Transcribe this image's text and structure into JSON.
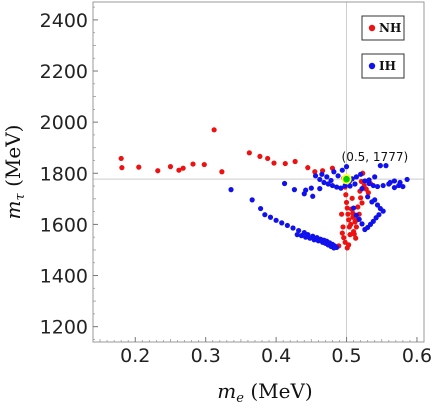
{
  "chart_data": {
    "type": "scatter",
    "xlabel": {
      "symbol": "m",
      "sub": "e",
      "unit": " (MeV)"
    },
    "ylabel": {
      "symbol": "m",
      "sub": "τ",
      "unit": " (MeV)"
    },
    "xlim": [
      0.14,
      0.61
    ],
    "ylim": [
      1140,
      2470
    ],
    "xticks": [
      "0.2",
      "0.3",
      "0.4",
      "0.5",
      "0.6"
    ],
    "xtick_values": [
      0.2,
      0.3,
      0.4,
      0.5,
      0.6
    ],
    "yticks": [
      "1200",
      "1400",
      "1600",
      "1800",
      "2000",
      "2200",
      "2400"
    ],
    "ytick_values": [
      1200,
      1400,
      1600,
      1800,
      2000,
      2200,
      2400
    ],
    "grid": false,
    "reference_lines": {
      "x": 0.5,
      "y": 1777,
      "color": "#cccccc"
    },
    "annotation": {
      "text": "(0.5, 1777)",
      "x": 0.5,
      "y": 1777,
      "marker_fill": "#00cc00",
      "marker_stroke": "#ffff33"
    },
    "legend": {
      "placement": "top-right",
      "entries": [
        {
          "label": "NH",
          "color": "#ee1111"
        },
        {
          "label": "IH",
          "color": "#1111ee"
        }
      ]
    },
    "series": [
      {
        "name": "NH",
        "color": "#ee1111",
        "points": [
          [
            0.18,
            1858
          ],
          [
            0.181,
            1822
          ],
          [
            0.205,
            1824
          ],
          [
            0.232,
            1810
          ],
          [
            0.25,
            1826
          ],
          [
            0.262,
            1812
          ],
          [
            0.268,
            1820
          ],
          [
            0.282,
            1836
          ],
          [
            0.298,
            1834
          ],
          [
            0.312,
            1970
          ],
          [
            0.323,
            1806
          ],
          [
            0.362,
            1880
          ],
          [
            0.377,
            1866
          ],
          [
            0.388,
            1858
          ],
          [
            0.397,
            1840
          ],
          [
            0.413,
            1838
          ],
          [
            0.427,
            1846
          ],
          [
            0.445,
            1822
          ],
          [
            0.455,
            1806
          ],
          [
            0.466,
            1810
          ],
          [
            0.48,
            1820
          ],
          [
            0.496,
            1780
          ],
          [
            0.498,
            1746
          ],
          [
            0.499,
            1716
          ],
          [
            0.5,
            1686
          ],
          [
            0.501,
            1664
          ],
          [
            0.502,
            1640
          ],
          [
            0.503,
            1618
          ],
          [
            0.504,
            1590
          ],
          [
            0.505,
            1560
          ],
          [
            0.503,
            1520
          ],
          [
            0.501,
            1508
          ],
          [
            0.508,
            1702
          ],
          [
            0.507,
            1660
          ],
          [
            0.509,
            1628
          ],
          [
            0.512,
            1610
          ],
          [
            0.514,
            1590
          ],
          [
            0.51,
            1572
          ],
          [
            0.513,
            1546
          ],
          [
            0.511,
            1562
          ],
          [
            0.509,
            1644
          ],
          [
            0.515,
            1618
          ],
          [
            0.516,
            1668
          ],
          [
            0.518,
            1640
          ],
          [
            0.52,
            1704
          ],
          [
            0.522,
            1684
          ],
          [
            0.495,
            1590
          ],
          [
            0.494,
            1566
          ],
          [
            0.496,
            1548
          ],
          [
            0.498,
            1530
          ],
          [
            0.519,
            1730
          ],
          [
            0.521,
            1768
          ],
          [
            0.523,
            1800
          ],
          [
            0.525,
            1752
          ],
          [
            0.528,
            1738
          ],
          [
            0.531,
            1724
          ],
          [
            0.534,
            1760
          ],
          [
            0.489,
            1516
          ],
          [
            0.506,
            1600
          ],
          [
            0.493,
            1640
          ]
        ]
      },
      {
        "name": "IH",
        "color": "#1111ee",
        "points": [
          [
            0.336,
            1736
          ],
          [
            0.366,
            1696
          ],
          [
            0.378,
            1662
          ],
          [
            0.384,
            1638
          ],
          [
            0.392,
            1628
          ],
          [
            0.4,
            1616
          ],
          [
            0.408,
            1606
          ],
          [
            0.416,
            1596
          ],
          [
            0.424,
            1586
          ],
          [
            0.432,
            1576
          ],
          [
            0.44,
            1568
          ],
          [
            0.445,
            1560
          ],
          [
            0.452,
            1554
          ],
          [
            0.458,
            1548
          ],
          [
            0.463,
            1542
          ],
          [
            0.468,
            1538
          ],
          [
            0.472,
            1534
          ],
          [
            0.476,
            1528
          ],
          [
            0.48,
            1522
          ],
          [
            0.483,
            1516
          ],
          [
            0.486,
            1510
          ],
          [
            0.43,
            1560
          ],
          [
            0.436,
            1556
          ],
          [
            0.442,
            1550
          ],
          [
            0.448,
            1546
          ],
          [
            0.454,
            1540
          ],
          [
            0.46,
            1536
          ],
          [
            0.466,
            1530
          ],
          [
            0.471,
            1526
          ],
          [
            0.476,
            1520
          ],
          [
            0.481,
            1514
          ],
          [
            0.458,
            1548
          ],
          [
            0.464,
            1540
          ],
          [
            0.47,
            1526
          ],
          [
            0.474,
            1520
          ],
          [
            0.478,
            1514
          ],
          [
            0.482,
            1508
          ],
          [
            0.412,
            1760
          ],
          [
            0.426,
            1736
          ],
          [
            0.44,
            1720
          ],
          [
            0.452,
            1710
          ],
          [
            0.456,
            1790
          ],
          [
            0.462,
            1776
          ],
          [
            0.468,
            1764
          ],
          [
            0.474,
            1758
          ],
          [
            0.48,
            1752
          ],
          [
            0.486,
            1746
          ],
          [
            0.492,
            1742
          ],
          [
            0.498,
            1752
          ],
          [
            0.504,
            1768
          ],
          [
            0.508,
            1778
          ],
          [
            0.514,
            1786
          ],
          [
            0.52,
            1796
          ],
          [
            0.526,
            1770
          ],
          [
            0.532,
            1760
          ],
          [
            0.538,
            1752
          ],
          [
            0.544,
            1748
          ],
          [
            0.552,
            1752
          ],
          [
            0.56,
            1758
          ],
          [
            0.568,
            1770
          ],
          [
            0.576,
            1764
          ],
          [
            0.586,
            1776
          ],
          [
            0.548,
            1830
          ],
          [
            0.556,
            1830
          ],
          [
            0.53,
            1708
          ],
          [
            0.536,
            1688
          ],
          [
            0.54,
            1696
          ],
          [
            0.544,
            1676
          ],
          [
            0.548,
            1662
          ],
          [
            0.552,
            1652
          ],
          [
            0.546,
            1638
          ],
          [
            0.542,
            1626
          ],
          [
            0.538,
            1612
          ],
          [
            0.534,
            1600
          ],
          [
            0.53,
            1588
          ],
          [
            0.526,
            1580
          ],
          [
            0.522,
            1602
          ],
          [
            0.518,
            1620
          ],
          [
            0.514,
            1636
          ],
          [
            0.51,
            1664
          ],
          [
            0.465,
            1796
          ],
          [
            0.472,
            1786
          ],
          [
            0.482,
            1806
          ],
          [
            0.488,
            1790
          ],
          [
            0.494,
            1812
          ],
          [
            0.5,
            1826
          ],
          [
            0.478,
            1772
          ],
          [
            0.462,
            1740
          ],
          [
            0.505,
            1750
          ],
          [
            0.512,
            1758
          ],
          [
            0.522,
            1740
          ],
          [
            0.532,
            1774
          ],
          [
            0.54,
            1786
          ],
          [
            0.562,
            1764
          ],
          [
            0.574,
            1752
          ],
          [
            0.58,
            1748
          ],
          [
            0.568,
            1744
          ],
          [
            0.442,
            1734
          ],
          [
            0.45,
            1742
          ]
        ]
      }
    ]
  }
}
